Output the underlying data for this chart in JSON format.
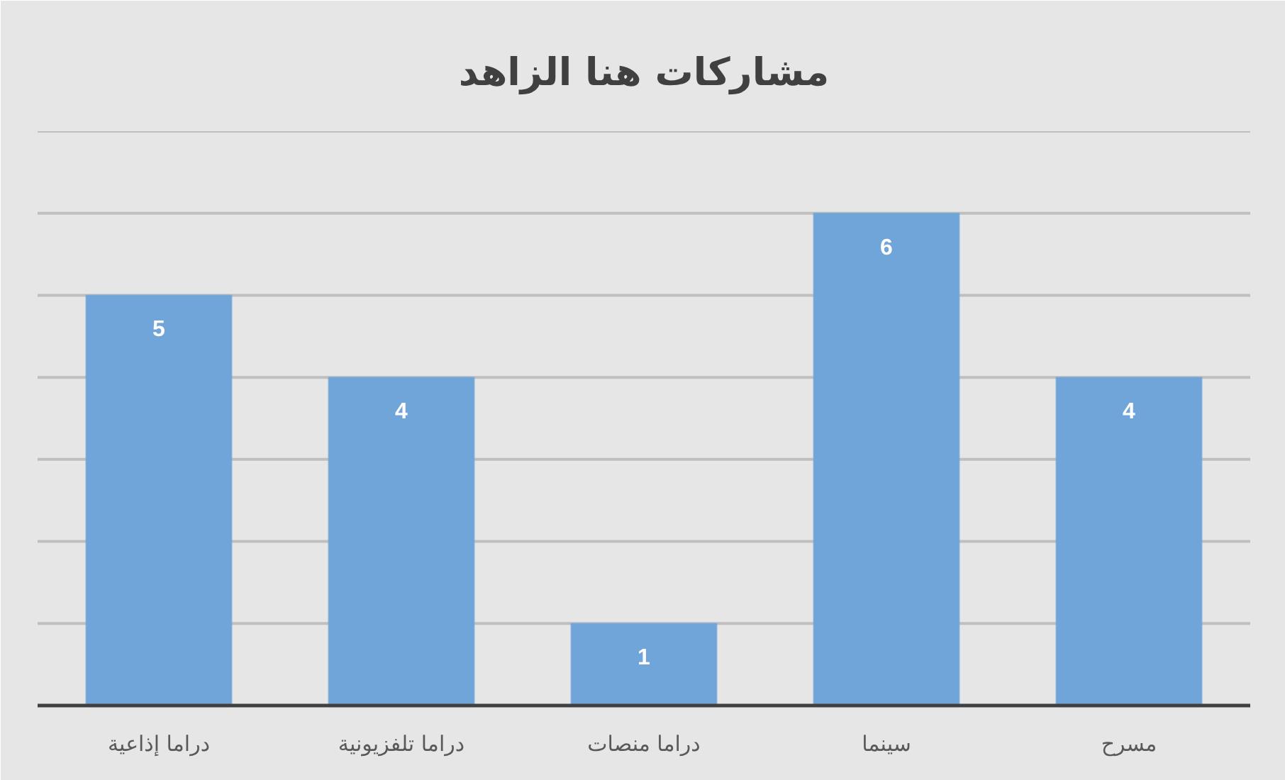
{
  "chart_data": {
    "type": "bar",
    "title": "مشاركات هنا الزاهد",
    "categories": [
      "دراما إذاعية",
      "دراما تلفزيونية",
      "دراما منصات",
      "سينما",
      "مسرح"
    ],
    "values": [
      5,
      4,
      1,
      6,
      4
    ],
    "color": "#6fa5d8",
    "ylim": [
      0,
      7
    ],
    "yticks": [
      {
        "value": 0,
        "label": null
      },
      {
        "value": 1,
        "label": null
      },
      {
        "value": 2,
        "label": null
      },
      {
        "value": 3,
        "label": null
      },
      {
        "value": 4,
        "label": null
      },
      {
        "value": 5,
        "label": null
      },
      {
        "value": 6,
        "label": null
      },
      {
        "value": 7,
        "label": null
      }
    ],
    "grid": "y",
    "data_labels": true,
    "tick_labels": "x"
  }
}
